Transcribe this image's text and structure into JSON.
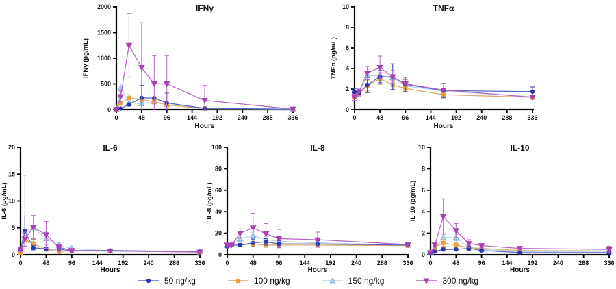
{
  "legend": {
    "items": [
      {
        "label": "50 ng/kg"
      },
      {
        "label": "100 ng/kg"
      },
      {
        "label": "150 ng/kg"
      },
      {
        "label": "300 ng/kg"
      }
    ]
  },
  "chart_data": {
    "type": "line",
    "xlabel": "Hours",
    "x_hours": [
      0,
      8,
      24,
      48,
      72,
      96,
      168,
      336
    ],
    "xticks": [
      0,
      48,
      96,
      144,
      192,
      240,
      288,
      336
    ],
    "legend_position": "bottom-center",
    "error_bars": "sd, capped, clipped at 0",
    "series": [
      {
        "name": "50 ng/kg",
        "marker": "circle",
        "color": "#2a36ad",
        "line_color": "#5066c8",
        "err_color": "#3a4cc0"
      },
      {
        "name": "100 ng/kg",
        "marker": "square",
        "color": "#f0a335",
        "line_color": "#d9a96b",
        "err_color": "#e8a84f"
      },
      {
        "name": "150 ng/kg",
        "marker": "triangle-up",
        "color": "#b3d0ec",
        "line_color": "#b9d3ec",
        "err_color": "#9cc0e4",
        "edge_color": "#85afda"
      },
      {
        "name": "300 ng/kg",
        "marker": "triangle-down",
        "color": "#ac3fb5",
        "line_color": "#b564c2",
        "err_color": "#bb6fc9"
      }
    ],
    "panels": [
      {
        "id": "ifng",
        "title": "IFNγ",
        "ylabel": "IFNγ (pg/mL)",
        "ylim": [
          0,
          2000
        ],
        "yticks": [
          0,
          500,
          1000,
          1500,
          2000
        ],
        "series_values": [
          [
            5,
            20,
            100,
            230,
            225,
            130,
            25,
            10
          ],
          [
            5,
            120,
            230,
            200,
            150,
            90,
            20,
            10
          ],
          [
            5,
            420,
            130,
            115,
            150,
            100,
            20,
            10
          ],
          [
            5,
            250,
            1250,
            820,
            500,
            500,
            180,
            10
          ]
        ],
        "series_errors": [
          [
            0,
            0,
            30,
            240,
            0,
            190,
            0,
            0
          ],
          [
            0,
            30,
            60,
            40,
            40,
            30,
            0,
            0
          ],
          [
            0,
            80,
            40,
            30,
            30,
            30,
            0,
            0
          ],
          [
            0,
            120,
            620,
            870,
            550,
            550,
            290,
            0
          ]
        ]
      },
      {
        "id": "tnfa",
        "title": "TNFα",
        "ylabel": "TNFα (pg/mL)",
        "ylim": [
          0,
          10
        ],
        "yticks": [
          0,
          2,
          4,
          6,
          8,
          10
        ],
        "series_values": [
          [
            1.7,
            1.6,
            2.4,
            3.2,
            3.2,
            2.45,
            1.85,
            1.75
          ],
          [
            1.35,
            1.55,
            2.3,
            3.0,
            2.4,
            2.05,
            1.45,
            1.2
          ],
          [
            1.4,
            1.6,
            3.3,
            3.3,
            3.1,
            2.3,
            1.8,
            1.25
          ],
          [
            1.2,
            1.7,
            3.55,
            4.1,
            3.2,
            2.5,
            1.9,
            1.2
          ]
        ],
        "series_errors": [
          [
            0.35,
            0.35,
            0.75,
            0.6,
            1.25,
            0.7,
            0.7,
            0.45
          ],
          [
            0.25,
            0.3,
            0.5,
            0.55,
            0.45,
            0.3,
            0.15,
            0.15
          ],
          [
            0.2,
            0.25,
            0.4,
            0.3,
            0.3,
            0.25,
            0.2,
            0.15
          ],
          [
            0.3,
            0.3,
            0.65,
            1.1,
            0.6,
            0.4,
            0.65,
            0.2
          ]
        ]
      },
      {
        "id": "il6",
        "title": "IL-6",
        "ylabel": "IL-6 (pg/mL)",
        "ylim": [
          0,
          20
        ],
        "yticks": [
          0,
          5,
          10,
          15,
          20
        ],
        "series_values": [
          [
            1.0,
            4.4,
            1.3,
            1.1,
            1.0,
            0.8,
            0.8,
            0.6
          ],
          [
            0.4,
            2.8,
            2.1,
            1.0,
            0.6,
            0.7,
            0.7,
            0.5
          ],
          [
            1.0,
            4.3,
            5.0,
            3.0,
            1.7,
            1.2,
            0.7,
            0.5
          ],
          [
            0.9,
            2.9,
            5.1,
            3.7,
            1.4,
            0.8,
            0.7,
            0.5
          ]
        ],
        "series_errors": [
          [
            0.3,
            2.8,
            0.4,
            0.3,
            0.3,
            0.2,
            0.15,
            0.1
          ],
          [
            0.1,
            0.8,
            0.9,
            0.2,
            0.15,
            0.1,
            0.1,
            0.1
          ],
          [
            0.3,
            10.5,
            2.2,
            1.2,
            0.5,
            0.3,
            0.1,
            0.1
          ],
          [
            0.3,
            1.3,
            2.2,
            2.5,
            0.5,
            0.2,
            0.1,
            0.1
          ]
        ]
      },
      {
        "id": "il8",
        "title": "IL-8",
        "ylabel": "IL-8 (pg/mL)",
        "ylim": [
          0,
          100
        ],
        "yticks": [
          0,
          20,
          40,
          60,
          80,
          100
        ],
        "series_values": [
          [
            8,
            9,
            9,
            11,
            12,
            10,
            10,
            9
          ],
          [
            8.5,
            9,
            9,
            10,
            9,
            9,
            9,
            8.5
          ],
          [
            9,
            9.5,
            15,
            18,
            14,
            12.5,
            11,
            9
          ],
          [
            9,
            9,
            20,
            25,
            19.5,
            15,
            14,
            9.5
          ]
        ],
        "series_errors": [
          [
            1.5,
            1.5,
            1.5,
            3.5,
            3,
            3,
            3,
            1.5
          ],
          [
            1,
            1,
            1,
            2,
            2,
            1.5,
            1.5,
            1
          ],
          [
            1.5,
            1.5,
            2.5,
            3,
            3,
            2,
            2,
            1.5
          ],
          [
            1.5,
            1.5,
            4,
            13.5,
            9.5,
            8.5,
            7,
            1.5
          ]
        ]
      },
      {
        "id": "il10",
        "title": "IL-10",
        "ylabel": "IL-10 (pg/mL)",
        "ylim": [
          0,
          10
        ],
        "yticks": [
          0,
          2,
          4,
          6,
          8,
          10
        ],
        "series_values": [
          [
            0.15,
            0.3,
            0.5,
            0.5,
            0.6,
            0.4,
            0.2,
            0.2
          ],
          [
            0.25,
            0.7,
            1.1,
            0.9,
            0.65,
            0.6,
            0.4,
            0.35
          ],
          [
            0.2,
            0.5,
            1.6,
            1.6,
            0.7,
            0.5,
            0.3,
            0.3
          ],
          [
            0.2,
            0.9,
            3.55,
            2.25,
            1.05,
            0.85,
            0.6,
            0.5
          ]
        ],
        "series_errors": [
          [
            0.05,
            0.1,
            0.15,
            0.1,
            0.2,
            0.1,
            0.1,
            0.1
          ],
          [
            0.05,
            0.2,
            0.3,
            0.2,
            0.15,
            0.15,
            0.1,
            0.1
          ],
          [
            0.05,
            0.15,
            0.35,
            0.3,
            0.2,
            0.1,
            0.1,
            0.1
          ],
          [
            0.05,
            0.25,
            1.65,
            0.65,
            0.35,
            0.2,
            0.15,
            0.3
          ]
        ]
      }
    ]
  }
}
